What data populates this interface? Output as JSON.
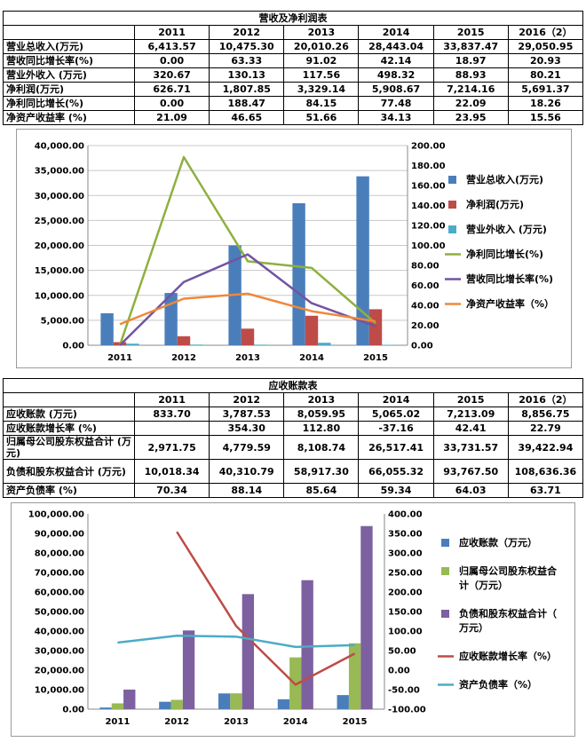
{
  "table1": {
    "title": "营收及净利润表",
    "columns": [
      "",
      "2011",
      "2012",
      "2013",
      "2014",
      "2015",
      "2016（2）"
    ],
    "rows": [
      [
        "营业总收入(万元)",
        "6,413.57",
        "10,475.30",
        "20,010.26",
        "28,443.04",
        "33,837.47",
        "29,050.95"
      ],
      [
        "营收同比增长率(%)",
        "0.00",
        "63.33",
        "91.02",
        "42.14",
        "18.97",
        "20.93"
      ],
      [
        "营业外收入 (万元)",
        "320.67",
        "130.13",
        "117.56",
        "498.32",
        "88.93",
        "80.21"
      ],
      [
        "净利润(万元)",
        "626.71",
        "1,807.85",
        "3,329.14",
        "5,908.67",
        "7,214.16",
        "5,691.37"
      ],
      [
        "净利同比增长(%)",
        "0.00",
        "188.47",
        "84.15",
        "77.48",
        "22.09",
        "18.26"
      ],
      [
        "净资产收益率 (%)",
        "21.09",
        "46.65",
        "51.66",
        "34.13",
        "23.95",
        "15.56"
      ]
    ]
  },
  "table2": {
    "title": "应收账款表",
    "columns": [
      "",
      "2011",
      "2012",
      "2013",
      "2014",
      "2015",
      "2016（2）"
    ],
    "rows": [
      [
        "应收账款 (万元)",
        "833.70",
        "3,787.53",
        "8,059.95",
        "5,065.02",
        "7,213.09",
        "8,856.75"
      ],
      [
        "应收账款增长率 (%)",
        "",
        "354.30",
        "112.80",
        "-37.16",
        "42.41",
        "22.79"
      ],
      [
        "归属母公司股东权益合计 (万元)",
        "2,971.75",
        "4,779.59",
        "8,108.74",
        "26,517.41",
        "33,731.57",
        "39,422.94"
      ],
      [
        "负债和股东权益合计 (万元)",
        "10,018.34",
        "40,310.79",
        "58,917.30",
        "66,055.32",
        "93,767.50",
        "108,636.36"
      ],
      [
        "资产负债率 (%)",
        "70.34",
        "88.14",
        "85.64",
        "59.34",
        "64.03",
        "63.71"
      ]
    ]
  },
  "chart_data": [
    {
      "type": "bar",
      "categories": [
        "2011",
        "2012",
        "2013",
        "2014",
        "2015"
      ],
      "ylim": [
        0,
        40000
      ],
      "y2lim": [
        0,
        200
      ],
      "yticks": [
        "0.00",
        "5,000.00",
        "10,000.00",
        "15,000.00",
        "20,000.00",
        "25,000.00",
        "30,000.00",
        "35,000.00",
        "40,000.00"
      ],
      "y2ticks": [
        "0.00",
        "20.00",
        "40.00",
        "60.00",
        "80.00",
        "100.00",
        "120.00",
        "140.00",
        "160.00",
        "180.00",
        "200.00"
      ],
      "grid": true,
      "legend": "right",
      "series": [
        {
          "name": "营业总收入(万元)",
          "kind": "bar",
          "axis": "left",
          "color": "#4a7ebb",
          "values": [
            6413.57,
            10475.3,
            20010.26,
            28443.04,
            33837.47
          ]
        },
        {
          "name": "净利润(万元)",
          "kind": "bar",
          "axis": "left",
          "color": "#be4b48",
          "values": [
            626.71,
            1807.85,
            3329.14,
            5908.67,
            7214.16
          ]
        },
        {
          "name": "营业外收入 (万元)",
          "kind": "bar",
          "axis": "left",
          "color": "#4bacc6",
          "values": [
            320.67,
            130.13,
            117.56,
            498.32,
            88.93
          ]
        },
        {
          "name": "净利同比增长(%)",
          "kind": "line",
          "axis": "right",
          "color": "#8eb03f",
          "values": [
            0.0,
            188.47,
            84.15,
            77.48,
            22.09
          ]
        },
        {
          "name": "营收同比增长率(%)",
          "kind": "line",
          "axis": "right",
          "color": "#7254a1",
          "values": [
            0.0,
            63.33,
            91.02,
            42.14,
            18.97
          ]
        },
        {
          "name": "净资产收益率（%）",
          "kind": "line",
          "axis": "right",
          "color": "#f0883a",
          "values": [
            21.09,
            46.65,
            51.66,
            34.13,
            23.95
          ]
        }
      ]
    },
    {
      "type": "bar",
      "categories": [
        "2011",
        "2012",
        "2013",
        "2014",
        "2015"
      ],
      "ylim": [
        0,
        100000
      ],
      "y2lim": [
        -100,
        400
      ],
      "yticks": [
        "0.00",
        "10,000.00",
        "20,000.00",
        "30,000.00",
        "40,000.00",
        "50,000.00",
        "60,000.00",
        "70,000.00",
        "80,000.00",
        "90,000.00",
        "100,000.00"
      ],
      "y2ticks": [
        "-100.00",
        "-50.00",
        "0.00",
        "50.00",
        "100.00",
        "150.00",
        "200.00",
        "250.00",
        "300.00",
        "350.00",
        "400.00"
      ],
      "grid": false,
      "legend": "right",
      "series": [
        {
          "name": "应收账款（万元）",
          "kind": "bar",
          "axis": "left",
          "color": "#4a7ebb",
          "values": [
            833.7,
            3787.53,
            8059.95,
            5065.02,
            7213.09
          ]
        },
        {
          "name": "归属母公司股东权益合计（万元）",
          "kind": "bar",
          "axis": "left",
          "color": "#98b954",
          "values": [
            2971.75,
            4779.59,
            8108.74,
            26517.41,
            33731.57
          ]
        },
        {
          "name": "负债和股东权益合计（万元）",
          "kind": "bar",
          "axis": "left",
          "color": "#7d60a0",
          "values": [
            10018.34,
            40310.79,
            58917.3,
            66055.32,
            93767.5
          ]
        },
        {
          "name": "应收账款增长率（%）",
          "kind": "line",
          "axis": "right",
          "color": "#be4b48",
          "values": [
            null,
            354.3,
            112.8,
            -37.16,
            42.41
          ]
        },
        {
          "name": "资产负债率（%）",
          "kind": "line",
          "axis": "right",
          "color": "#4bacc6",
          "values": [
            70.34,
            88.14,
            85.64,
            59.34,
            64.03
          ]
        }
      ]
    }
  ]
}
